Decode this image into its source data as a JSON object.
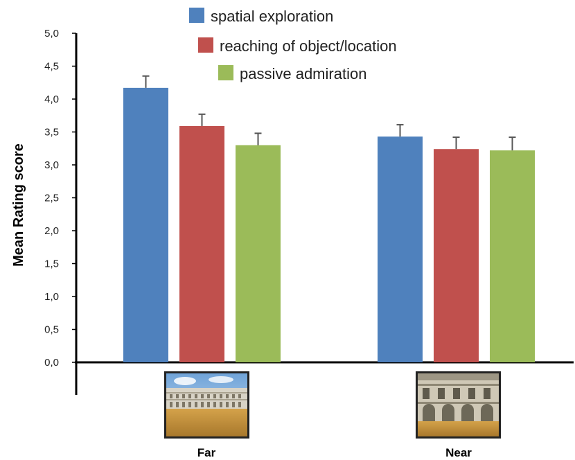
{
  "chart_data": {
    "type": "bar",
    "title": "",
    "xlabel": "",
    "ylabel": "Mean Rating score",
    "ylim": [
      0,
      5
    ],
    "yticks": [
      "0,0",
      "0,5",
      "1,0",
      "1,5",
      "2,0",
      "2,5",
      "3,0",
      "3,5",
      "4,0",
      "4,5",
      "5,0"
    ],
    "categories": [
      "Far",
      "Near"
    ],
    "series": [
      {
        "name": "spatial exploration",
        "color": "#4F81BD",
        "values": [
          4.17,
          3.43
        ],
        "errors": [
          0.18,
          0.18
        ]
      },
      {
        "name": "reaching of object/location",
        "color": "#C0504D",
        "values": [
          3.59,
          3.24
        ],
        "errors": [
          0.18,
          0.18
        ]
      },
      {
        "name": "passive admiration",
        "color": "#9BBB59",
        "values": [
          3.3,
          3.22
        ],
        "errors": [
          0.18,
          0.2
        ]
      }
    ],
    "grid": false,
    "legend_position": "top-center",
    "category_images": [
      "courtyard-far-view",
      "courtyard-near-view"
    ]
  }
}
